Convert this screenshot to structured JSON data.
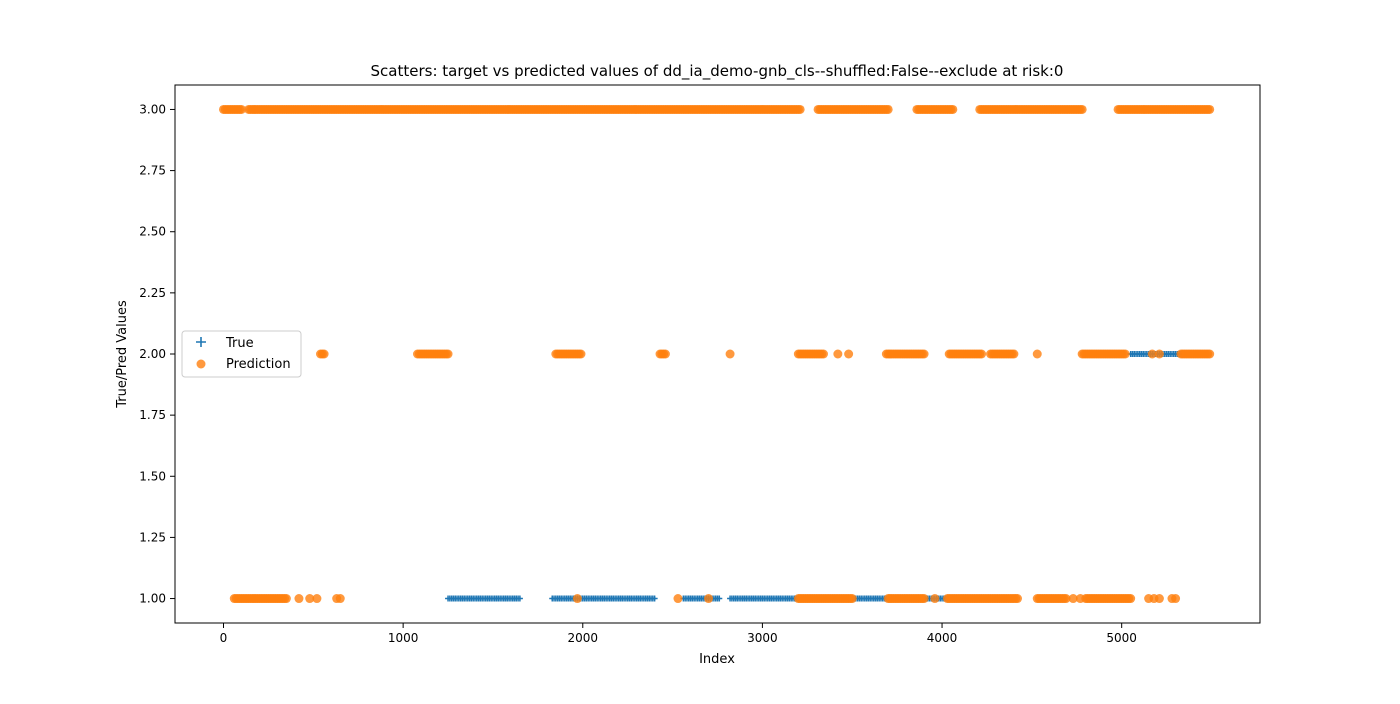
{
  "chart_data": {
    "type": "scatter",
    "title": "Scatters: target vs predicted values of dd_ia_demo-gnb_cls--shuffled:False--exclude at risk:0",
    "xlabel": "Index",
    "ylabel": "True/Pred Values",
    "xlim": [
      -270,
      5770
    ],
    "ylim": [
      0.9,
      3.1
    ],
    "x_ticks": [
      0,
      1000,
      2000,
      3000,
      4000,
      5000
    ],
    "y_ticks": [
      1.0,
      1.25,
      1.5,
      1.75,
      2.0,
      2.25,
      2.5,
      2.75,
      3.0
    ],
    "x_tick_labels": [
      "0",
      "1000",
      "2000",
      "3000",
      "4000",
      "5000"
    ],
    "y_tick_labels": [
      "1.00",
      "1.25",
      "1.50",
      "1.75",
      "2.00",
      "2.25",
      "2.50",
      "2.75",
      "3.00"
    ],
    "grid": false,
    "legend": {
      "position": "center-left",
      "entries": [
        "True",
        "Prediction"
      ]
    },
    "series": [
      {
        "name": "True",
        "marker": "plus",
        "color": "#1f77b4",
        "segments": [
          {
            "y": 1,
            "x_start": 1250,
            "x_end": 1650
          },
          {
            "y": 1,
            "x_start": 1830,
            "x_end": 2400
          },
          {
            "y": 1,
            "x_start": 2560,
            "x_end": 2760
          },
          {
            "y": 1,
            "x_start": 2820,
            "x_end": 3220
          },
          {
            "y": 1,
            "x_start": 3220,
            "x_end": 4360
          },
          {
            "y": 2,
            "x_start": 5050,
            "x_end": 5330
          }
        ]
      },
      {
        "name": "Prediction",
        "marker": "circle",
        "color": "#ff7f0e",
        "segments": [
          {
            "y": 3,
            "x_start": 0,
            "x_end": 100
          },
          {
            "y": 3,
            "x_start": 140,
            "x_end": 3210
          },
          {
            "y": 3,
            "x_start": 3310,
            "x_end": 3700
          },
          {
            "y": 3,
            "x_start": 3860,
            "x_end": 4060
          },
          {
            "y": 3,
            "x_start": 4210,
            "x_end": 4780
          },
          {
            "y": 3,
            "x_start": 4980,
            "x_end": 5490
          },
          {
            "y": 2,
            "x_start": 540,
            "x_end": 560
          },
          {
            "y": 2,
            "x_start": 1080,
            "x_end": 1250
          },
          {
            "y": 2,
            "x_start": 1850,
            "x_end": 1990
          },
          {
            "y": 2,
            "x_start": 2430,
            "x_end": 2460
          },
          {
            "y": 2,
            "x_start": 3200,
            "x_end": 3340
          },
          {
            "y": 2,
            "x_start": 3690,
            "x_end": 3900
          },
          {
            "y": 2,
            "x_start": 4040,
            "x_end": 4220
          },
          {
            "y": 2,
            "x_start": 4270,
            "x_end": 4400
          },
          {
            "y": 2,
            "x_start": 4780,
            "x_end": 5020
          },
          {
            "y": 2,
            "x_start": 5330,
            "x_end": 5490
          },
          {
            "y": 1,
            "x_start": 60,
            "x_end": 350
          },
          {
            "y": 1,
            "x_start": 3200,
            "x_end": 3500
          },
          {
            "y": 1,
            "x_start": 3700,
            "x_end": 3900
          },
          {
            "y": 1,
            "x_start": 4030,
            "x_end": 4420
          },
          {
            "y": 1,
            "x_start": 4530,
            "x_end": 4690
          },
          {
            "y": 1,
            "x_start": 4800,
            "x_end": 5050
          }
        ],
        "points": [
          {
            "x": 420,
            "y": 1
          },
          {
            "x": 480,
            "y": 1
          },
          {
            "x": 520,
            "y": 1
          },
          {
            "x": 630,
            "y": 1
          },
          {
            "x": 650,
            "y": 1
          },
          {
            "x": 1970,
            "y": 1
          },
          {
            "x": 2530,
            "y": 1
          },
          {
            "x": 2700,
            "y": 1
          },
          {
            "x": 3960,
            "y": 1
          },
          {
            "x": 4730,
            "y": 1
          },
          {
            "x": 4770,
            "y": 1
          },
          {
            "x": 5150,
            "y": 1
          },
          {
            "x": 5180,
            "y": 1
          },
          {
            "x": 5210,
            "y": 1
          },
          {
            "x": 5280,
            "y": 1
          },
          {
            "x": 5300,
            "y": 1
          },
          {
            "x": 3420,
            "y": 2
          },
          {
            "x": 3480,
            "y": 2
          },
          {
            "x": 4530,
            "y": 2
          },
          {
            "x": 2820,
            "y": 2
          },
          {
            "x": 5170,
            "y": 2
          },
          {
            "x": 5210,
            "y": 2
          }
        ]
      }
    ]
  }
}
